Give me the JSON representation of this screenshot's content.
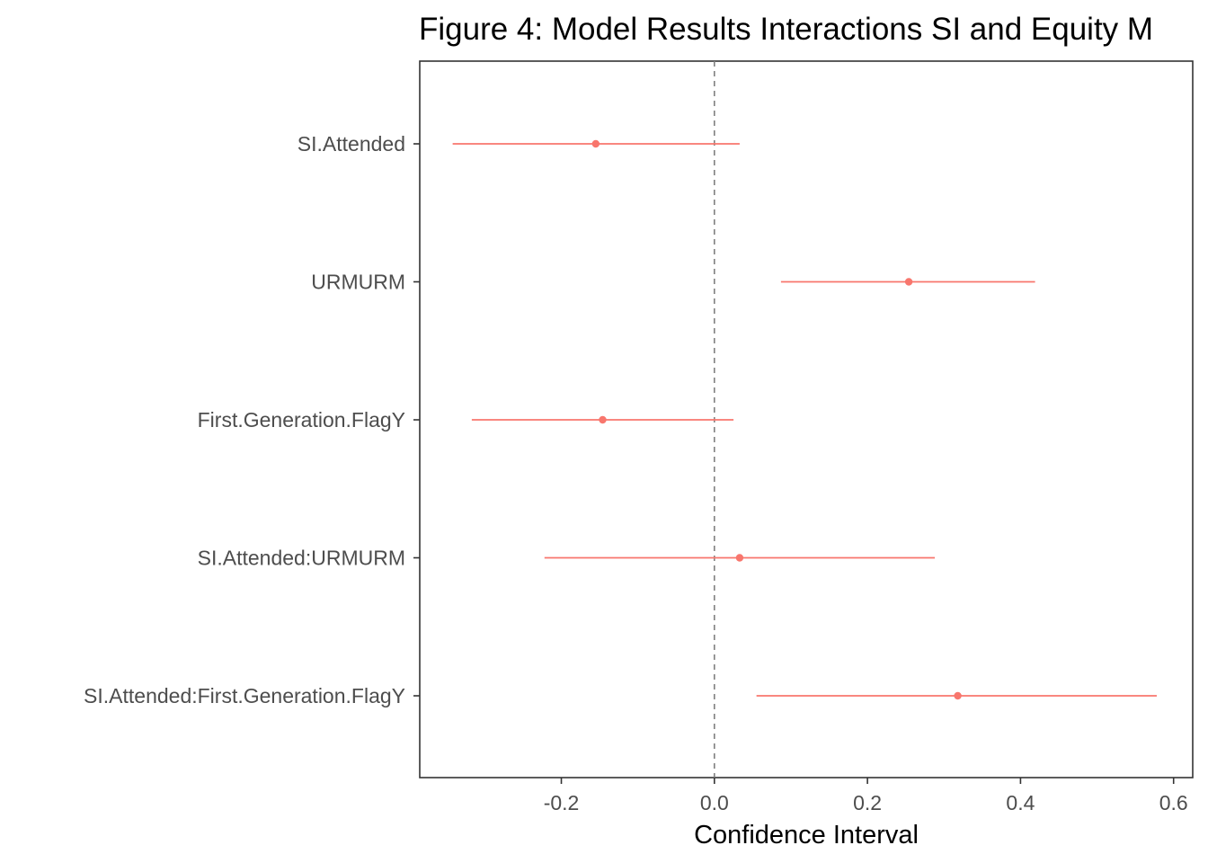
{
  "chart_data": {
    "type": "scatter",
    "subtype": "coefficient-plot",
    "title": "Figure 4: Model Results Interactions SI and Equity M",
    "xlabel": "Confidence Interval",
    "ylabel": "",
    "xlim": [
      -0.385,
      0.625
    ],
    "x_ticks": [
      -0.2,
      0.0,
      0.2,
      0.4,
      0.6
    ],
    "x_tick_labels": [
      "-0.2",
      "0.0",
      "0.2",
      "0.4",
      "0.6"
    ],
    "reference_line": {
      "x": 0.0,
      "style": "dashed"
    },
    "grid": false,
    "legend": "none",
    "series": [
      {
        "color": "#f8766d",
        "terms": [
          {
            "label": "SI.Attended",
            "estimate": -0.155,
            "low": -0.342,
            "high": 0.033
          },
          {
            "label": "URMURM",
            "estimate": 0.254,
            "low": 0.087,
            "high": 0.419
          },
          {
            "label": "First.Generation.FlagY",
            "estimate": -0.146,
            "low": -0.317,
            "high": 0.025
          },
          {
            "label": "SI.Attended:URMURM",
            "estimate": 0.033,
            "low": -0.222,
            "high": 0.288
          },
          {
            "label": "SI.Attended:First.Generation.FlagY",
            "estimate": 0.318,
            "low": 0.055,
            "high": 0.578
          }
        ]
      }
    ],
    "colors": {
      "point": "#f8766d",
      "panel_border": "#333333",
      "reference_line": "#808080",
      "tick_text": "#4d4d4d"
    }
  }
}
